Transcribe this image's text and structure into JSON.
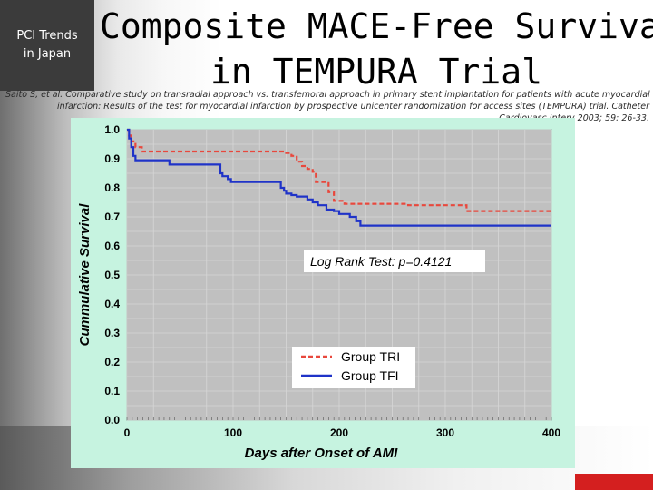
{
  "brand": {
    "line1": "PCI Trends",
    "line2": "in Japan"
  },
  "slide_title": {
    "line1": "Composite MACE-Free Survival",
    "line2": "in TEMPURA Trial"
  },
  "citation": {
    "line1": "Saito S, et al. Comparative study on transradial approach vs. transfemoral approach in primary stent implantation for patients with acute myocardial",
    "line2": "infarction: Results of the test for myocardial infarction by prospective unicenter randomization for access sites (TEMPURA) trial. Catheter",
    "line3": "Cardiovasc Interv 2003; 59: 26-33."
  },
  "colors": {
    "tri": "#e8483d",
    "tfi": "#1f33c8",
    "panel": "#c6f3e0",
    "plot_bg": "#c0c0c0",
    "accent_red": "#d41f1f"
  },
  "chart_data": {
    "type": "line",
    "xlabel": "Days after Onset of AMI",
    "ylabel": "Cummulative Survival",
    "xlim": [
      0,
      400
    ],
    "ylim": [
      0,
      1.0
    ],
    "x_ticks": [
      "0",
      "100",
      "200",
      "300",
      "400"
    ],
    "y_ticks": [
      "0.0",
      "0.1",
      "0.2",
      "0.3",
      "0.4",
      "0.5",
      "0.6",
      "0.7",
      "0.8",
      "0.9",
      "1.0"
    ],
    "grid": true,
    "legend_position": "bottom-center",
    "annotation": "Log Rank Test: p=0.4121",
    "series": [
      {
        "name": "Group TRI",
        "style": "dashed",
        "color": "#e8483d",
        "x": [
          0,
          2,
          4,
          8,
          14,
          100,
          145,
          150,
          155,
          160,
          165,
          170,
          175,
          178,
          190,
          195,
          205,
          225,
          240,
          265,
          300,
          320,
          400
        ],
        "y": [
          1.0,
          0.98,
          0.96,
          0.94,
          0.925,
          0.925,
          0.925,
          0.92,
          0.91,
          0.89,
          0.875,
          0.865,
          0.855,
          0.82,
          0.785,
          0.755,
          0.745,
          0.745,
          0.745,
          0.74,
          0.74,
          0.72,
          0.72
        ]
      },
      {
        "name": "Group TFI",
        "style": "solid",
        "color": "#1f33c8",
        "x": [
          0,
          2,
          4,
          6,
          8,
          40,
          85,
          88,
          90,
          95,
          98,
          140,
          145,
          148,
          150,
          155,
          160,
          170,
          175,
          180,
          188,
          195,
          200,
          210,
          216,
          220,
          400
        ],
        "y": [
          1.0,
          0.97,
          0.94,
          0.91,
          0.895,
          0.88,
          0.88,
          0.85,
          0.84,
          0.83,
          0.82,
          0.82,
          0.8,
          0.79,
          0.78,
          0.775,
          0.77,
          0.76,
          0.75,
          0.74,
          0.725,
          0.72,
          0.71,
          0.7,
          0.685,
          0.67,
          0.67
        ]
      }
    ]
  }
}
